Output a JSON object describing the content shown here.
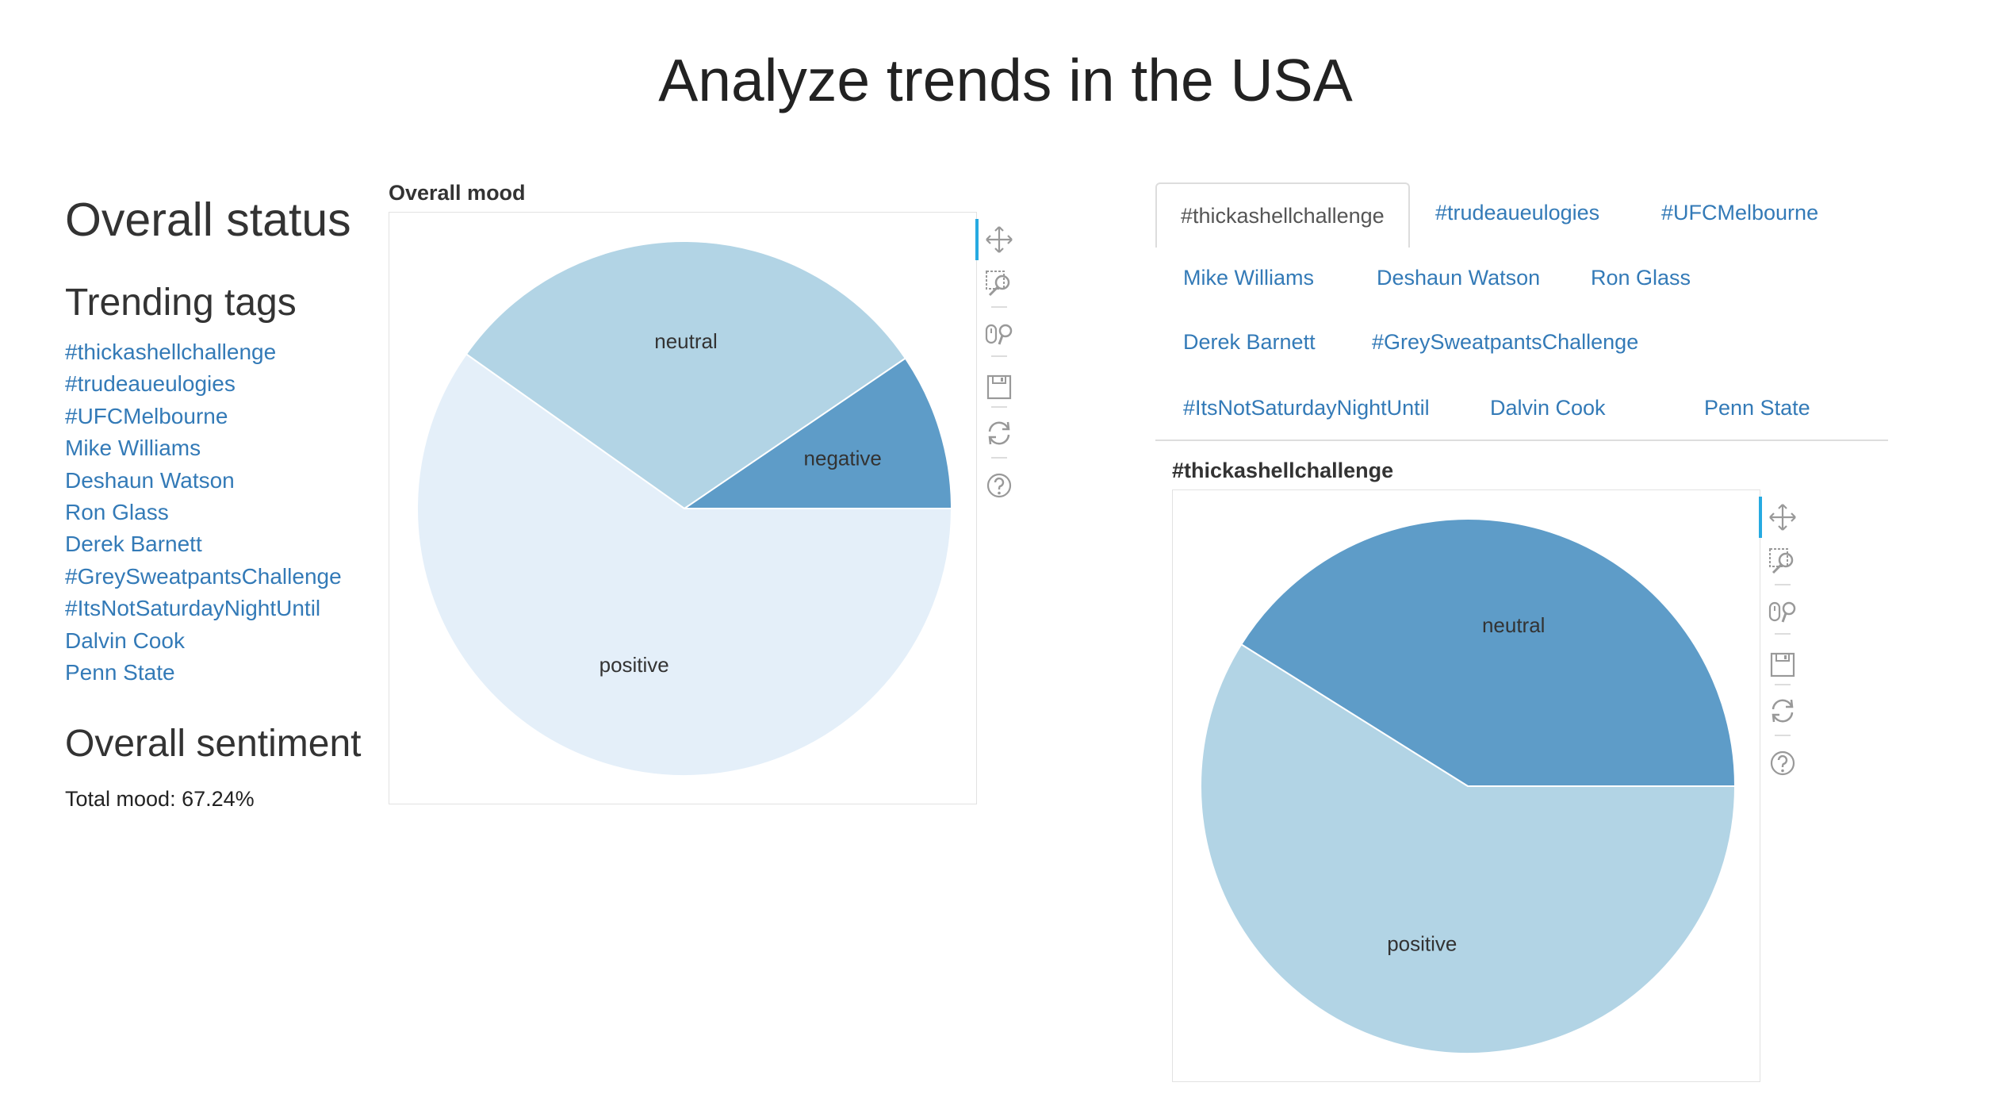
{
  "page": {
    "title": "Analyze trends in the USA"
  },
  "sidebar": {
    "status_heading": "Overall status",
    "trending_heading": "Trending tags",
    "tags": [
      "#thickashellchallenge",
      "#trudeaueulogies",
      "#UFCMelbourne",
      "Mike Williams",
      "Deshaun Watson",
      "Ron Glass",
      "Derek Barnett",
      "#GreySweatpantsChallenge",
      "#ItsNotSaturdayNightUntil",
      "Dalvin Cook",
      "Penn State"
    ],
    "sentiment_heading": "Overall sentiment",
    "total_mood": "Total mood: 67.24%"
  },
  "tabs": {
    "items": [
      "#thickashellchallenge",
      "#trudeaueulogies",
      "#UFCMelbourne",
      "Mike Williams",
      "Deshaun Watson",
      "Ron Glass",
      "Derek Barnett",
      "#GreySweatpantsChallenge",
      "#ItsNotSaturdayNightUntil",
      "Dalvin Cook",
      "Penn State"
    ],
    "active": "#thickashellchallenge"
  },
  "toolbar_tools": [
    "pan-icon",
    "box-zoom-icon",
    "wheel-zoom-icon",
    "save-icon",
    "reset-icon",
    "help-icon"
  ],
  "colors": {
    "link": "#337ab7",
    "toolbar_active": "#26aae1",
    "slice_dark": "#5e9cc8",
    "slice_mid": "#b2d4e5",
    "slice_light": "#e4eff9"
  },
  "chart_data": [
    {
      "type": "pie",
      "title": "Overall mood",
      "slices": [
        {
          "label": "negative",
          "value": 0.095,
          "color": "#5e9cc8"
        },
        {
          "label": "neutral",
          "value": 0.307,
          "color": "#b2d4e5"
        },
        {
          "label": "positive",
          "value": 0.598,
          "color": "#e4eff9"
        }
      ]
    },
    {
      "type": "pie",
      "title": "#thickashellchallenge",
      "slices": [
        {
          "label": "neutral",
          "value": 0.411,
          "color": "#5e9cc8"
        },
        {
          "label": "positive",
          "value": 0.589,
          "color": "#b2d4e5"
        }
      ]
    }
  ]
}
